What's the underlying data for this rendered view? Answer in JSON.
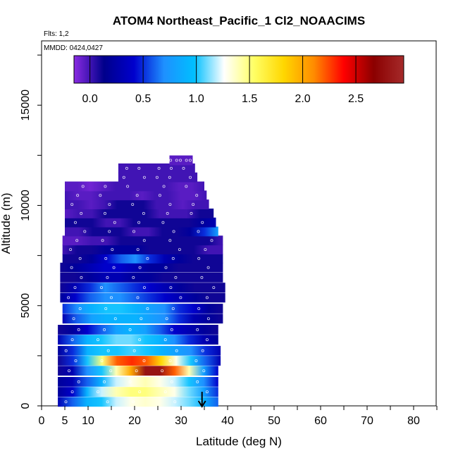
{
  "chart_data": {
    "type": "heatmap",
    "title": "ATOM4 Northeast_Pacific_1 Cl2_NOAACIMS",
    "flights_label": "Flts: 1,2",
    "mmdd_label": "MMDD: 0424,0427",
    "xlabel": "Latitude (deg N)",
    "ylabel": "Altitude (m)",
    "xlim": [
      0,
      85
    ],
    "ylim": [
      0,
      18000
    ],
    "x_ticks": [
      0,
      5,
      10,
      20,
      30,
      40,
      50,
      60,
      70,
      80
    ],
    "x_tick_labels": [
      "0",
      "5",
      "10",
      "20",
      "30",
      "40",
      "50",
      "60",
      "70",
      "80"
    ],
    "y_ticks": [
      0,
      5000,
      10000,
      15000
    ],
    "y_tick_labels": [
      "0",
      "5000",
      "10000",
      "15000"
    ],
    "colorbar": {
      "range": [
        -0.15,
        2.95
      ],
      "ticks": [
        0.0,
        0.5,
        1.0,
        1.5,
        2.0,
        2.5
      ],
      "tick_labels": [
        "0.0",
        "0.5",
        "1.0",
        "1.5",
        "2.0",
        "2.5"
      ],
      "colors": [
        "#8a2be2",
        "#00008b",
        "#0000cd",
        "#1e90ff",
        "#00bfff",
        "#ffffff",
        "#ffff66",
        "#ffd700",
        "#ff8c00",
        "#ff0000",
        "#8b0000",
        "#a52a2a"
      ]
    },
    "marker_arrow_latitude": 34.5,
    "bands": [
      {
        "alt": 200,
        "lat_min": 3.5,
        "lat_max": 38.0,
        "values": [
          0.3,
          0.6,
          0.9,
          1.0,
          1.2,
          1.3,
          1.35,
          1.3,
          1.2,
          1.1,
          0.9,
          0.6
        ]
      },
      {
        "alt": 700,
        "lat_min": 3.5,
        "lat_max": 38.0,
        "values": [
          0.2,
          0.4,
          0.9,
          1.2,
          1.4,
          1.5,
          1.5,
          1.4,
          1.3,
          1.1,
          0.8,
          0.5
        ]
      },
      {
        "alt": 1200,
        "lat_min": 3.5,
        "lat_max": 38.0,
        "values": [
          0.2,
          0.3,
          0.6,
          0.9,
          1.2,
          1.3,
          1.4,
          1.3,
          1.2,
          1.0,
          0.7,
          0.4
        ]
      },
      {
        "alt": 1750,
        "lat_min": 3.5,
        "lat_max": 38.0,
        "values": [
          0.1,
          0.3,
          0.7,
          1.0,
          1.4,
          2.0,
          2.8,
          2.8,
          2.2,
          1.4,
          0.8,
          0.4
        ]
      },
      {
        "alt": 2250,
        "lat_min": 3.5,
        "lat_max": 38.5,
        "values": [
          0.1,
          0.5,
          1.0,
          1.5,
          2.2,
          2.3,
          2.2,
          1.8,
          1.3,
          1.0,
          0.6,
          0.3
        ]
      },
      {
        "alt": 2750,
        "lat_min": 3.5,
        "lat_max": 38.5,
        "values": [
          0.2,
          0.5,
          0.9,
          1.0,
          1.0,
          1.05,
          1.0,
          0.9,
          0.8,
          0.7,
          0.5,
          0.3
        ]
      },
      {
        "alt": 3300,
        "lat_min": 3.5,
        "lat_max": 38.0,
        "values": [
          0.3,
          0.6,
          0.9,
          1.0,
          1.1,
          1.1,
          1.0,
          0.9,
          0.7,
          0.5,
          0.3,
          0.2
        ]
      },
      {
        "alt": 3800,
        "lat_min": 3.5,
        "lat_max": 38.0,
        "values": [
          0.1,
          0.2,
          0.4,
          0.6,
          0.8,
          0.9,
          0.8,
          0.6,
          0.4,
          0.3,
          0.2,
          0.1
        ]
      },
      {
        "alt": 4350,
        "lat_min": 4.5,
        "lat_max": 39.0,
        "values": [
          0.3,
          0.6,
          0.8,
          0.9,
          0.9,
          0.9,
          0.8,
          0.7,
          0.5,
          0.3,
          0.2,
          0.1
        ]
      },
      {
        "alt": 4850,
        "lat_min": 4.5,
        "lat_max": 39.0,
        "values": [
          0.5,
          0.7,
          0.9,
          1.0,
          1.0,
          0.9,
          0.8,
          0.7,
          0.5,
          0.4,
          0.2,
          0.1
        ]
      },
      {
        "alt": 5400,
        "lat_min": 4.0,
        "lat_max": 39.5,
        "values": [
          0.2,
          0.4,
          0.6,
          0.7,
          0.7,
          0.6,
          0.5,
          0.4,
          0.3,
          0.2,
          0.1,
          0.1
        ]
      },
      {
        "alt": 5900,
        "lat_min": 4.0,
        "lat_max": 39.5,
        "values": [
          0.1,
          0.3,
          0.5,
          0.7,
          0.6,
          0.5,
          0.4,
          0.3,
          0.2,
          0.1,
          0.1,
          0.1
        ]
      },
      {
        "alt": 6400,
        "lat_min": 4.0,
        "lat_max": 39.0,
        "values": [
          0.1,
          0.1,
          0.2,
          0.3,
          0.3,
          0.2,
          0.2,
          0.1,
          0.1,
          0.1,
          0.1,
          0.1
        ]
      },
      {
        "alt": 6900,
        "lat_min": 4.0,
        "lat_max": 39.0,
        "values": [
          0.1,
          0.2,
          0.3,
          0.4,
          0.4,
          0.3,
          0.2,
          0.2,
          0.1,
          0.1,
          0.1,
          0.1
        ]
      },
      {
        "alt": 7350,
        "lat_min": 4.5,
        "lat_max": 39.0,
        "values": [
          0.1,
          0.1,
          0.2,
          0.4,
          0.6,
          0.7,
          0.5,
          0.3,
          0.2,
          0.1,
          0.1,
          0.1
        ]
      },
      {
        "alt": 7800,
        "lat_min": 4.5,
        "lat_max": 39.0,
        "values": [
          0.0,
          0.1,
          0.1,
          0.2,
          0.2,
          0.2,
          0.1,
          0.1,
          0.1,
          0.1,
          0.0,
          0.0
        ]
      },
      {
        "alt": 8250,
        "lat_min": 4.5,
        "lat_max": 39.0,
        "values": [
          -0.05,
          -0.05,
          0.0,
          0.0,
          0.1,
          0.1,
          0.1,
          0.1,
          0.1,
          0.1,
          0.1,
          0.0
        ]
      },
      {
        "alt": 8700,
        "lat_min": 5.0,
        "lat_max": 38.0,
        "values": [
          0.0,
          0.0,
          0.1,
          0.1,
          0.1,
          0.0,
          0.0,
          0.1,
          0.1,
          0.2,
          0.5,
          0.8
        ]
      },
      {
        "alt": 9150,
        "lat_min": 5.0,
        "lat_max": 37.5,
        "values": [
          0.1,
          0.1,
          0.1,
          0.0,
          0.0,
          0.1,
          0.1,
          0.1,
          0.1,
          0.1,
          0.2,
          0.3
        ]
      },
      {
        "alt": 9600,
        "lat_min": 5.0,
        "lat_max": 37.0,
        "values": [
          -0.05,
          0.0,
          0.0,
          0.1,
          0.1,
          0.1,
          0.1,
          0.0,
          0.0,
          0.0,
          0.1,
          0.1
        ]
      },
      {
        "alt": 10050,
        "lat_min": 5.0,
        "lat_max": 36.0,
        "values": [
          0.0,
          0.0,
          -0.05,
          0.0,
          0.1,
          0.1,
          0.1,
          0.0,
          0.0,
          -0.05,
          0.0,
          0.0
        ]
      },
      {
        "alt": 10500,
        "lat_min": 5.0,
        "lat_max": 35.5,
        "values": [
          0.0,
          -0.05,
          -0.05,
          0.0,
          0.0,
          0.0,
          -0.05,
          0.0,
          0.0,
          -0.05,
          -0.05,
          0.0
        ]
      },
      {
        "alt": 10950,
        "lat_min": 5.0,
        "lat_max": 35.0,
        "values": [
          -0.05,
          -0.05,
          -0.1,
          -0.05,
          0.0,
          0.0,
          0.0,
          0.0,
          0.0,
          -0.05,
          -0.05,
          0.0
        ]
      },
      {
        "alt": 11400,
        "lat_min": 16.5,
        "lat_max": 33.5,
        "values": [
          0.0,
          0.0,
          0.0,
          0.0,
          0.0,
          0.0,
          0.0,
          0.0
        ]
      },
      {
        "alt": 11850,
        "lat_min": 16.5,
        "lat_max": 33.0,
        "values": [
          0.0,
          0.0,
          0.0,
          0.0,
          0.0,
          0.0,
          0.0,
          0.0
        ]
      },
      {
        "alt": 12250,
        "lat_min": 27.5,
        "lat_max": 32.5,
        "values": [
          -0.05,
          -0.05,
          -0.05,
          -0.05
        ]
      }
    ]
  }
}
